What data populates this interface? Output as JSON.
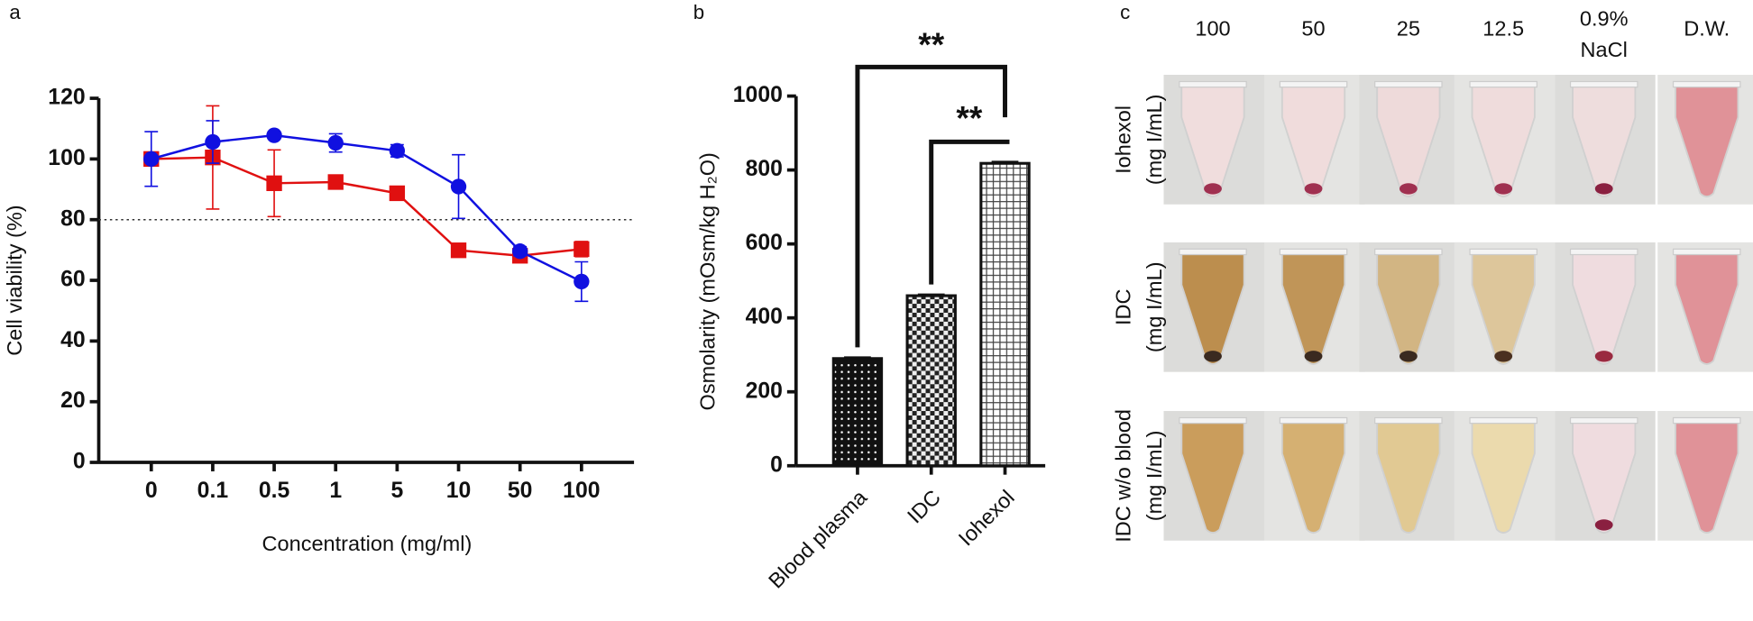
{
  "chart_data": [
    {
      "type": "line",
      "panel_label": "a",
      "x_label": "Concentration (mg/ml)",
      "y_label": "Cell viability (%)",
      "categories": [
        "0",
        "0.1",
        "0.5",
        "1",
        "5",
        "10",
        "50",
        "100"
      ],
      "series": [
        {
          "color": "#1010e0",
          "marker": "circle",
          "values": [
            100,
            105.6,
            107.8,
            105.3,
            102.7,
            90.9,
            69.6,
            59.6
          ],
          "errors": [
            9,
            7,
            1,
            3,
            2,
            10.5,
            1.5,
            6.5
          ]
        },
        {
          "color": "#e01010",
          "marker": "square",
          "values": [
            100,
            100.5,
            92,
            92.4,
            88.7,
            69.9,
            68.1,
            70.3
          ],
          "errors": [
            1,
            17,
            11,
            1,
            1,
            1,
            1.5,
            2.5
          ]
        }
      ],
      "ylim": [
        0,
        120
      ],
      "yticks": [
        0,
        20,
        40,
        60,
        80,
        100,
        120
      ],
      "reference_line": 80
    },
    {
      "type": "bar",
      "panel_label": "b",
      "y_label": "Osmolarity (mOsm/kg H₂O)",
      "categories": [
        "Blood plasma",
        "IDC",
        "Iohexol"
      ],
      "values": [
        290,
        460,
        818
      ],
      "errors": [
        3,
        3,
        4
      ],
      "ylim": [
        0,
        1000
      ],
      "yticks": [
        0,
        200,
        400,
        600,
        800,
        1000
      ],
      "annotations": [
        "**",
        "**"
      ]
    }
  ],
  "image_panel": {
    "panel_label": "c",
    "column_labels": [
      [
        "100"
      ],
      [
        "50"
      ],
      [
        "25"
      ],
      [
        "12.5"
      ],
      [
        "0.9%",
        "NaCl"
      ],
      [
        "D.W."
      ]
    ],
    "row_labels": [
      [
        "Iohexol",
        "(mg I/mL)"
      ],
      [
        "IDC",
        "(mg I/mL)"
      ],
      [
        "IDC w/o blood",
        "(mg I/mL)"
      ]
    ]
  }
}
